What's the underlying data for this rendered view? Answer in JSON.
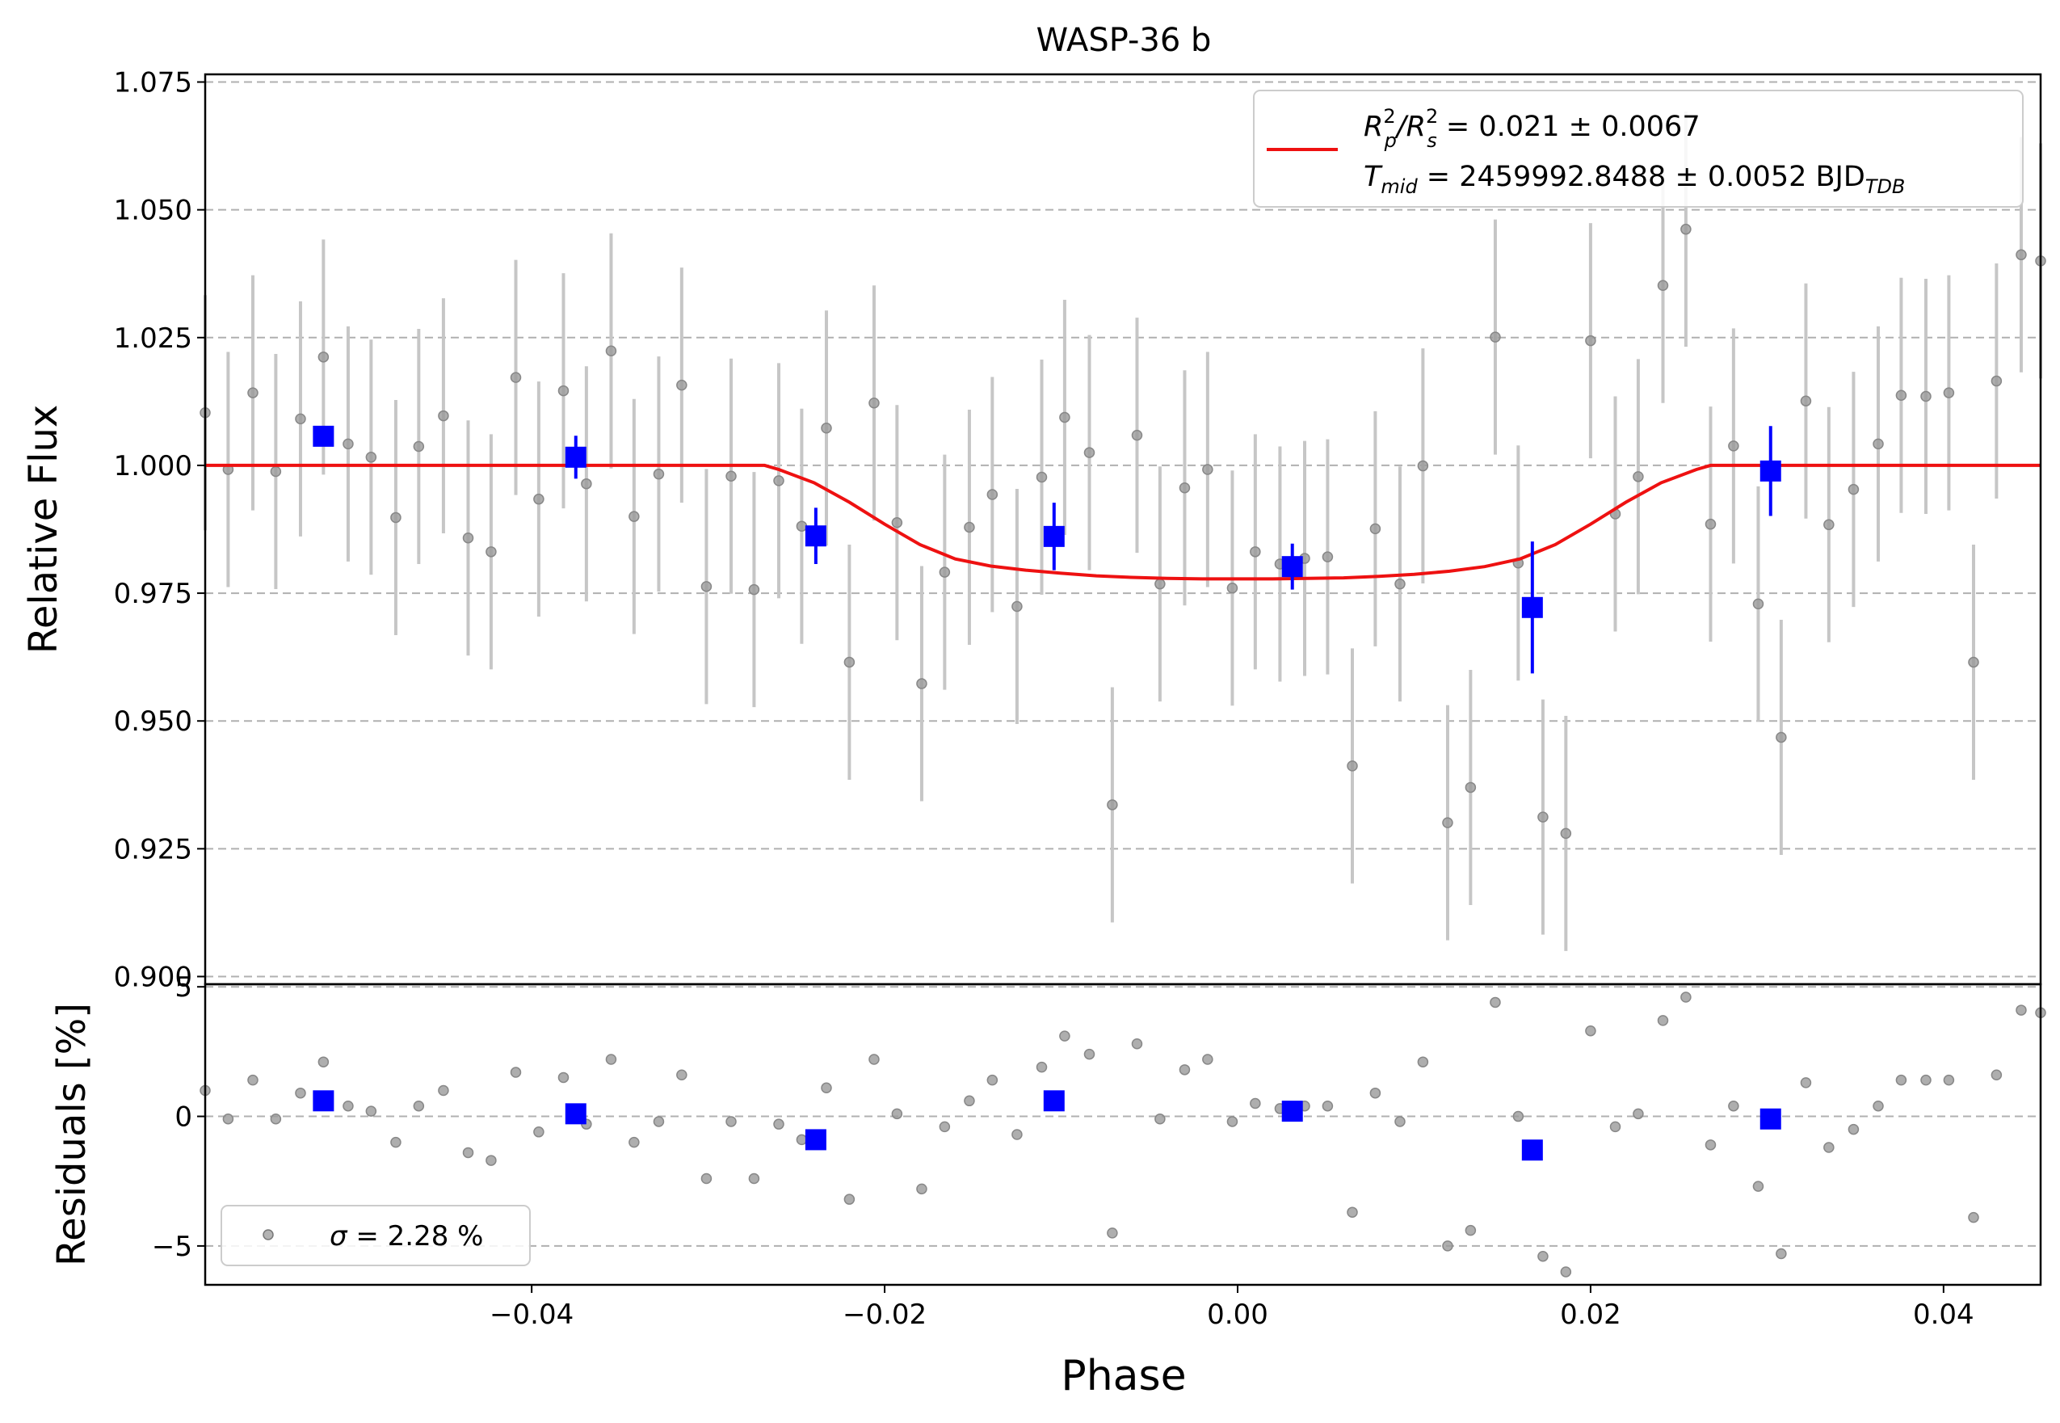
{
  "chart_data": [
    {
      "type": "scatter",
      "title": "WASP-36 b",
      "xlabel": "",
      "ylabel": "Relative Flux",
      "xlim": [
        -0.0585,
        0.0455
      ],
      "ylim": [
        0.8985,
        1.0765
      ],
      "grid": "horizontal dashed",
      "xticks": [
        -0.04,
        -0.02,
        0.0,
        0.02,
        0.04
      ],
      "yticks": [
        0.9,
        0.925,
        0.95,
        0.975,
        1.0,
        1.025,
        1.05,
        1.075
      ],
      "ytick_labels": [
        "0.900",
        "0.925",
        "0.950",
        "0.975",
        "1.000",
        "1.025",
        "1.050",
        "1.075"
      ],
      "legend": {
        "placement": "upper right",
        "line1": "R_p²/R_s² = 0.021 ± 0.0067",
        "line2": "T_mid = 2459992.8488 ± 0.0052 BJD_TDB"
      },
      "legend_parts": {
        "l1_a": "R",
        "l1_a_sup": "2",
        "l1_a_sub": "p",
        "l1_b": "/R",
        "l1_b_sup": "2",
        "l1_b_sub": "s",
        "l1_rest": " = 0.021 ± 0.0067",
        "l2_a": "T",
        "l2_a_sub": "mid",
        "l2_rest": " = 2459992.8488 ± 0.0052 BJD",
        "l2_sub": "TDB"
      },
      "colors": {
        "model": "#ee1111",
        "binned": "#0000ff",
        "raw": "#9a9a9a",
        "raw_err": "#c6c6c6"
      },
      "model": {
        "name": "model",
        "x": [
          -0.0585,
          -0.0268,
          -0.026,
          -0.024,
          -0.022,
          -0.02,
          -0.018,
          -0.016,
          -0.014,
          -0.012,
          -0.01,
          -0.008,
          -0.006,
          -0.004,
          -0.002,
          0.0,
          0.002,
          0.004,
          0.006,
          0.008,
          0.01,
          0.012,
          0.014,
          0.016,
          0.018,
          0.02,
          0.022,
          0.024,
          0.026,
          0.0268,
          0.0455
        ],
        "y": [
          1.0,
          1.0,
          0.9992,
          0.9966,
          0.9928,
          0.9885,
          0.9845,
          0.9817,
          0.9803,
          0.9795,
          0.9789,
          0.9784,
          0.9781,
          0.9779,
          0.9778,
          0.9778,
          0.9778,
          0.9779,
          0.978,
          0.9783,
          0.9787,
          0.9793,
          0.9802,
          0.9817,
          0.9845,
          0.9885,
          0.9928,
          0.9966,
          0.9992,
          1.0,
          1.0
        ]
      },
      "raw": {
        "x": [
          -0.0585,
          -0.0572,
          -0.0558,
          -0.0545,
          -0.0531,
          -0.0518,
          -0.0504,
          -0.0491,
          -0.0477,
          -0.0464,
          -0.045,
          -0.0436,
          -0.0423,
          -0.0409,
          -0.0396,
          -0.0382,
          -0.0369,
          -0.0355,
          -0.0342,
          -0.0328,
          -0.0315,
          -0.0301,
          -0.0287,
          -0.0274,
          -0.026,
          -0.0247,
          -0.0233,
          -0.022,
          -0.0206,
          -0.0193,
          -0.0179,
          -0.0166,
          -0.0152,
          -0.0139,
          -0.0125,
          -0.0111,
          -0.0098,
          -0.0084,
          -0.0071,
          -0.0057,
          -0.0044,
          -0.003,
          -0.0017,
          -0.0003,
          0.001,
          0.0024,
          0.0038,
          0.0051,
          0.0065,
          0.0078,
          0.0092,
          0.0105,
          0.0119,
          0.0132,
          0.0146,
          0.0159,
          0.0173,
          0.0186,
          0.02,
          0.0214,
          0.0227,
          0.0241,
          0.0254,
          0.0268,
          0.0281,
          0.0295,
          0.0308,
          0.0322,
          0.0335,
          0.0349,
          0.0363,
          0.0376,
          0.039,
          0.0403,
          0.0417,
          0.043,
          0.0444,
          0.0455
        ],
        "y": [
          1.0103,
          0.9992,
          1.0142,
          0.9988,
          1.0091,
          1.0212,
          1.0042,
          1.0016,
          0.9898,
          1.0037,
          1.0097,
          0.9858,
          0.9831,
          1.0172,
          0.9934,
          1.0146,
          0.9964,
          1.0224,
          0.99,
          0.9983,
          1.0157,
          0.9763,
          0.9979,
          0.9757,
          0.997,
          0.9881,
          1.0073,
          0.9615,
          1.0122,
          0.9888,
          0.9573,
          0.9791,
          0.9879,
          0.9943,
          0.9724,
          0.9977,
          1.0094,
          1.0025,
          0.9336,
          1.0059,
          0.9768,
          0.9956,
          0.9992,
          0.976,
          0.9831,
          0.9807,
          0.9818,
          0.9821,
          0.9412,
          0.9876,
          0.9768,
          0.9999,
          0.9301,
          0.937,
          1.0251,
          0.9809,
          0.9312,
          0.928,
          1.0244,
          0.9905,
          0.9978,
          1.0352,
          1.0462,
          0.9885,
          1.0038,
          0.9729,
          0.9468,
          1.0126,
          0.9884,
          0.9953,
          1.0042,
          1.0137,
          1.0135,
          1.0142,
          0.9615,
          1.0165,
          1.0412,
          1.04
        ],
        "err": [
          0.023,
          0.023,
          0.023,
          0.023,
          0.023,
          0.023,
          0.023,
          0.023,
          0.023,
          0.023,
          0.023,
          0.023,
          0.023,
          0.023,
          0.023,
          0.023,
          0.023,
          0.023,
          0.023,
          0.023,
          0.023,
          0.023,
          0.023,
          0.023,
          0.023,
          0.023,
          0.023,
          0.023,
          0.023,
          0.023,
          0.023,
          0.023,
          0.023,
          0.023,
          0.023,
          0.023,
          0.023,
          0.023,
          0.023,
          0.023,
          0.023,
          0.023,
          0.023,
          0.023,
          0.023,
          0.023,
          0.023,
          0.023,
          0.023,
          0.023,
          0.023,
          0.023,
          0.023,
          0.023,
          0.023,
          0.023,
          0.023,
          0.023,
          0.023,
          0.023,
          0.023,
          0.023,
          0.023,
          0.023,
          0.023,
          0.023,
          0.023,
          0.023,
          0.023,
          0.023,
          0.023,
          0.023,
          0.023,
          0.023,
          0.023,
          0.023,
          0.023,
          0.023
        ]
      },
      "binned": {
        "x": [
          -0.0518,
          -0.0375,
          -0.0239,
          -0.0104,
          0.0031,
          0.0167,
          0.0302
        ],
        "y": [
          1.0057,
          1.0016,
          0.9862,
          0.9861,
          0.9802,
          0.9722,
          0.9989
        ],
        "err": [
          0.0015,
          0.0042,
          0.0055,
          0.0066,
          0.0045,
          0.0129,
          0.0088
        ]
      }
    },
    {
      "type": "scatter",
      "xlabel": "Phase",
      "ylabel": "Residuals [%]",
      "xlim": [
        -0.0585,
        0.0455
      ],
      "ylim": [
        -6.5,
        5.1
      ],
      "grid": "horizontal dashed",
      "xticks": [
        -0.04,
        -0.02,
        0.0,
        0.02,
        0.04
      ],
      "xtick_labels": [
        "−0.04",
        "−0.02",
        "0.00",
        "0.02",
        "0.04"
      ],
      "yticks": [
        -5,
        0,
        5
      ],
      "ytick_labels": [
        "−5",
        "0",
        "5"
      ],
      "legend": {
        "placement": "lower left",
        "label": "σ = 2.28 %",
        "label_sym": "σ",
        "label_rest": " = 2.28 %"
      },
      "raw": {
        "x": [
          -0.0585,
          -0.0572,
          -0.0558,
          -0.0545,
          -0.0531,
          -0.0518,
          -0.0504,
          -0.0491,
          -0.0477,
          -0.0464,
          -0.045,
          -0.0436,
          -0.0423,
          -0.0409,
          -0.0396,
          -0.0382,
          -0.0369,
          -0.0355,
          -0.0342,
          -0.0328,
          -0.0315,
          -0.0301,
          -0.0287,
          -0.0274,
          -0.026,
          -0.0247,
          -0.0233,
          -0.022,
          -0.0206,
          -0.0193,
          -0.0179,
          -0.0166,
          -0.0152,
          -0.0139,
          -0.0125,
          -0.0111,
          -0.0098,
          -0.0084,
          -0.0071,
          -0.0057,
          -0.0044,
          -0.003,
          -0.0017,
          -0.0003,
          0.001,
          0.0024,
          0.0038,
          0.0051,
          0.0065,
          0.0078,
          0.0092,
          0.0105,
          0.0119,
          0.0132,
          0.0146,
          0.0159,
          0.0173,
          0.0186,
          0.02,
          0.0214,
          0.0227,
          0.0241,
          0.0254,
          0.0268,
          0.0281,
          0.0295,
          0.0308,
          0.0322,
          0.0335,
          0.0349,
          0.0363,
          0.0376,
          0.039,
          0.0403,
          0.0417,
          0.043,
          0.0444,
          0.0455
        ],
        "y": [
          1.0,
          -0.1,
          1.4,
          -0.1,
          0.9,
          2.1,
          0.4,
          0.2,
          -1.0,
          0.4,
          1.0,
          -1.4,
          -1.7,
          1.7,
          -0.6,
          1.5,
          -0.3,
          2.2,
          -1.0,
          -0.2,
          1.6,
          -2.4,
          -0.2,
          -2.4,
          -0.3,
          -0.9,
          1.1,
          -3.2,
          2.2,
          0.1,
          -2.8,
          -0.4,
          0.6,
          1.4,
          -0.7,
          1.9,
          3.1,
          2.4,
          -4.5,
          2.8,
          -0.1,
          1.8,
          2.2,
          -0.2,
          0.5,
          0.3,
          0.4,
          0.4,
          -3.7,
          0.9,
          -0.2,
          2.1,
          -5.0,
          -4.4,
          4.4,
          0.0,
          -5.4,
          -6.0,
          3.3,
          -0.4,
          0.1,
          3.7,
          4.6,
          -1.1,
          0.4,
          -2.7,
          -5.3,
          1.3,
          -1.2,
          -0.5,
          0.4,
          1.4,
          1.4,
          1.4,
          -3.9,
          1.6,
          4.1,
          4.0
        ]
      },
      "binned": {
        "x": [
          -0.0518,
          -0.0375,
          -0.0239,
          -0.0104,
          0.0031,
          0.0167,
          0.0302
        ],
        "y": [
          0.6,
          0.1,
          -0.9,
          0.6,
          0.2,
          -1.3,
          -0.1
        ]
      }
    }
  ]
}
